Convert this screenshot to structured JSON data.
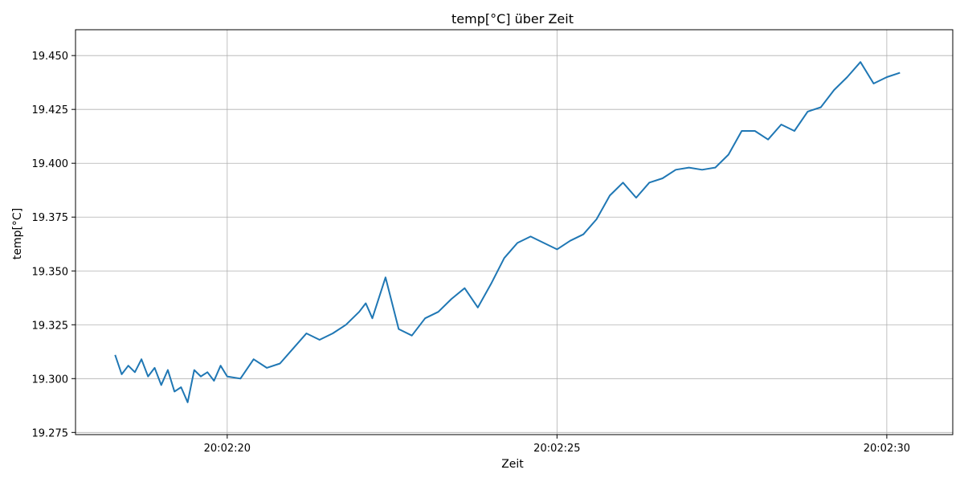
{
  "chart_data": {
    "type": "line",
    "title": "temp[°C] über Zeit",
    "xlabel": "Zeit",
    "ylabel": "temp[°C]",
    "x_unit": "seconds after 20:02:00",
    "xlim": [
      17.7,
      31.0
    ],
    "ylim": [
      19.274,
      19.462
    ],
    "x_ticks": [
      20,
      25,
      30
    ],
    "x_tick_labels": [
      "20:02:20",
      "20:02:25",
      "20:02:30"
    ],
    "y_ticks": [
      19.275,
      19.3,
      19.325,
      19.35,
      19.375,
      19.4,
      19.425,
      19.45
    ],
    "y_tick_labels": [
      "19.275",
      "19.300",
      "19.325",
      "19.350",
      "19.375",
      "19.400",
      "19.425",
      "19.450"
    ],
    "grid": true,
    "line_color": "#1f77b4",
    "series": [
      {
        "name": "",
        "x": [
          18.3,
          18.4,
          18.5,
          18.6,
          18.7,
          18.8,
          18.9,
          19.0,
          19.1,
          19.2,
          19.3,
          19.4,
          19.5,
          19.6,
          19.7,
          19.8,
          19.9,
          20.0,
          20.2,
          20.4,
          20.6,
          20.8,
          21.0,
          21.2,
          21.4,
          21.6,
          21.8,
          22.0,
          22.1,
          22.2,
          22.4,
          22.6,
          22.8,
          23.0,
          23.2,
          23.4,
          23.6,
          23.8,
          24.0,
          24.2,
          24.4,
          24.6,
          24.8,
          25.0,
          25.2,
          25.4,
          25.6,
          25.8,
          26.0,
          26.2,
          26.4,
          26.6,
          26.8,
          27.0,
          27.2,
          27.4,
          27.6,
          27.8,
          28.0,
          28.2,
          28.4,
          28.6,
          28.8,
          29.0,
          29.2,
          29.4,
          29.6,
          29.8,
          30.0,
          30.2
        ],
        "y": [
          19.311,
          19.302,
          19.306,
          19.303,
          19.309,
          19.301,
          19.305,
          19.297,
          19.304,
          19.294,
          19.296,
          19.289,
          19.304,
          19.301,
          19.303,
          19.299,
          19.306,
          19.301,
          19.3,
          19.309,
          19.305,
          19.307,
          19.314,
          19.321,
          19.318,
          19.321,
          19.325,
          19.331,
          19.335,
          19.328,
          19.347,
          19.323,
          19.32,
          19.328,
          19.331,
          19.337,
          19.342,
          19.333,
          19.344,
          19.356,
          19.363,
          19.366,
          19.363,
          19.36,
          19.364,
          19.367,
          19.374,
          19.385,
          19.391,
          19.384,
          19.391,
          19.393,
          19.397,
          19.398,
          19.397,
          19.398,
          19.404,
          19.415,
          19.415,
          19.411,
          19.418,
          19.415,
          19.424,
          19.426,
          19.434,
          19.44,
          19.447,
          19.437,
          19.44,
          19.442
        ]
      }
    ]
  }
}
